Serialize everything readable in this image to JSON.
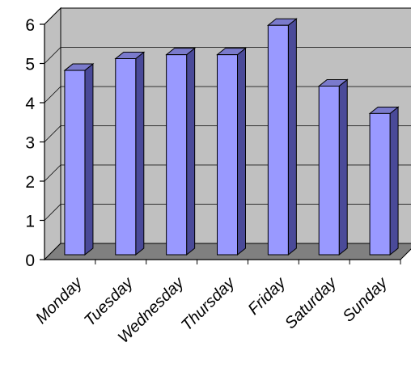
{
  "chart_data": {
    "type": "bar",
    "categories": [
      "Monday",
      "Tuesday",
      "Wednesday",
      "Thursday",
      "Friday",
      "Saturday",
      "Sunday"
    ],
    "values": [
      4.7,
      5.0,
      5.1,
      5.1,
      5.85,
      4.3,
      3.6
    ],
    "ylim": [
      0,
      6
    ],
    "yticks": [
      "0",
      "1",
      "2",
      "3",
      "4",
      "5",
      "6"
    ],
    "grid": true,
    "legend": "none",
    "colors": {
      "bar_front": "#9999ff",
      "bar_side": "#4a4a99",
      "bar_top": "#7a7acc",
      "wall": "#c0c0c0",
      "floor": "#808080",
      "gridline": "#000000"
    }
  }
}
